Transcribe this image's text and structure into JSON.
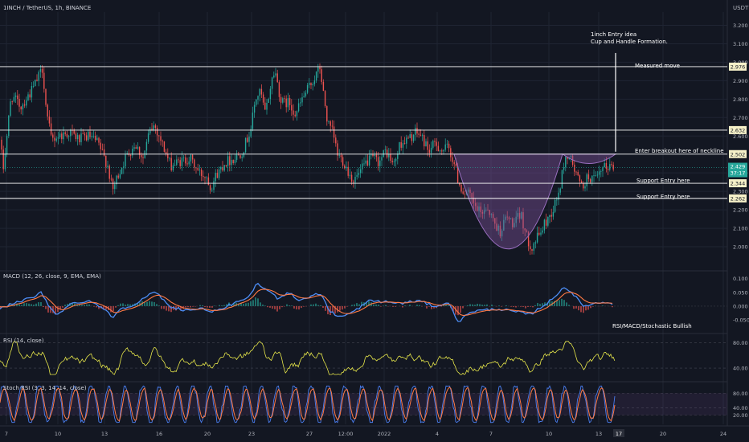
{
  "header": {
    "title": "1INCH / TetherUS, 1h, BINANCE",
    "currency": "USDT"
  },
  "colors": {
    "background": "#131722",
    "up": "#26a69a",
    "down": "#ef5350",
    "cup": "#7b4f96",
    "macd": "#4d8ef7",
    "signal": "#ff7a45",
    "rsi": "#e6e64a",
    "stoch_k": "#4a7ef0",
    "stoch_d": "#ff7a45",
    "level": "#ffffff",
    "grid": "#1f2433"
  },
  "annotations": {
    "idea": [
      "1inch Entry idea",
      "Cup and Handle Formation."
    ],
    "measured": "Measured move",
    "breakout": "Enter breakout here of neckline",
    "support1": "Support Entry here",
    "support2": "Support Entry here",
    "bullish": "RSI/MACD/Stochastic Bullish"
  },
  "chart_data": [
    {
      "type": "candlestick",
      "name": "price",
      "x_ticks": [
        "7",
        "10",
        "13",
        "16",
        "20",
        "23",
        "27",
        "12:00",
        "2022",
        "4",
        "7",
        "10",
        "13",
        "17",
        "20",
        "24"
      ],
      "y_ticks": [
        "3.200",
        "3.100",
        "3.000",
        "2.900",
        "2.800",
        "2.700",
        "2.600",
        "2.400",
        "2.300",
        "2.200",
        "2.100",
        "2.000"
      ],
      "ylim": [
        1.9,
        3.25
      ],
      "levels": [
        {
          "value": 2.976,
          "label": "2.976",
          "note": "Measured move"
        },
        {
          "value": 2.632,
          "label": "2.632"
        },
        {
          "value": 2.502,
          "label": "2.502",
          "note": "Enter breakout here of neckline"
        },
        {
          "value": 2.344,
          "label": "2.344",
          "note": "Support Entry here"
        },
        {
          "value": 2.262,
          "label": "2.262",
          "note": "Support Entry here"
        }
      ],
      "last_price": {
        "label": "2.429",
        "countdown": "37:17",
        "value": 2.429
      },
      "anchor_path": [
        [
          0,
          2.58
        ],
        [
          4,
          2.42
        ],
        [
          14,
          2.82
        ],
        [
          26,
          2.76
        ],
        [
          40,
          2.85
        ],
        [
          48,
          2.92
        ],
        [
          53,
          2.97
        ],
        [
          58,
          2.72
        ],
        [
          64,
          2.58
        ],
        [
          72,
          2.6
        ],
        [
          88,
          2.62
        ],
        [
          98,
          2.58
        ],
        [
          110,
          2.6
        ],
        [
          122,
          2.56
        ],
        [
          134,
          2.44
        ],
        [
          140,
          2.3
        ],
        [
          146,
          2.38
        ],
        [
          156,
          2.48
        ],
        [
          168,
          2.56
        ],
        [
          178,
          2.48
        ],
        [
          186,
          2.62
        ],
        [
          192,
          2.66
        ],
        [
          200,
          2.58
        ],
        [
          212,
          2.44
        ],
        [
          224,
          2.46
        ],
        [
          236,
          2.48
        ],
        [
          248,
          2.4
        ],
        [
          258,
          2.38
        ],
        [
          262,
          2.32
        ],
        [
          268,
          2.38
        ],
        [
          280,
          2.46
        ],
        [
          292,
          2.48
        ],
        [
          302,
          2.52
        ],
        [
          312,
          2.64
        ],
        [
          318,
          2.8
        ],
        [
          324,
          2.84
        ],
        [
          330,
          2.72
        ],
        [
          338,
          2.9
        ],
        [
          342,
          2.96
        ],
        [
          350,
          2.78
        ],
        [
          360,
          2.78
        ],
        [
          368,
          2.72
        ],
        [
          376,
          2.8
        ],
        [
          384,
          2.86
        ],
        [
          392,
          2.92
        ],
        [
          398,
          2.97
        ],
        [
          402,
          2.84
        ],
        [
          408,
          2.66
        ],
        [
          414,
          2.62
        ],
        [
          420,
          2.5
        ],
        [
          428,
          2.46
        ],
        [
          434,
          2.4
        ],
        [
          440,
          2.36
        ],
        [
          448,
          2.4
        ],
        [
          456,
          2.46
        ],
        [
          464,
          2.48
        ],
        [
          472,
          2.46
        ],
        [
          480,
          2.52
        ],
        [
          490,
          2.44
        ],
        [
          498,
          2.56
        ],
        [
          508,
          2.58
        ],
        [
          518,
          2.62
        ],
        [
          524,
          2.6
        ],
        [
          534,
          2.52
        ],
        [
          542,
          2.56
        ],
        [
          550,
          2.52
        ],
        [
          558,
          2.54
        ],
        [
          566,
          2.44
        ],
        [
          570,
          2.36
        ],
        [
          576,
          2.3
        ],
        [
          584,
          2.28
        ],
        [
          590,
          2.22
        ],
        [
          598,
          2.18
        ],
        [
          606,
          2.22
        ],
        [
          614,
          2.14
        ],
        [
          622,
          2.08
        ],
        [
          630,
          2.16
        ],
        [
          640,
          2.12
        ],
        [
          648,
          2.18
        ],
        [
          656,
          2.04
        ],
        [
          662,
          2.0
        ],
        [
          670,
          2.06
        ],
        [
          680,
          2.14
        ],
        [
          688,
          2.2
        ],
        [
          696,
          2.3
        ],
        [
          702,
          2.46
        ],
        [
          708,
          2.5
        ],
        [
          716,
          2.4
        ],
        [
          724,
          2.32
        ],
        [
          732,
          2.38
        ],
        [
          742,
          2.36
        ],
        [
          750,
          2.42
        ],
        [
          758,
          2.44
        ],
        [
          764,
          2.43
        ]
      ]
    },
    {
      "type": "line",
      "name": "macd",
      "title": "MACD (12, 26, close, 9, EMA, EMA)",
      "y_ticks": [
        "0.100",
        "0.050",
        "0.000",
        "-0.050"
      ],
      "ylim": [
        -0.085,
        0.105
      ],
      "anchor_path": [
        [
          0,
          -0.01
        ],
        [
          20,
          0.015
        ],
        [
          40,
          0.03
        ],
        [
          52,
          0.05
        ],
        [
          60,
          0.0
        ],
        [
          70,
          -0.03
        ],
        [
          90,
          0.01
        ],
        [
          110,
          0.02
        ],
        [
          125,
          0.0
        ],
        [
          140,
          -0.04
        ],
        [
          150,
          -0.01
        ],
        [
          170,
          0.01
        ],
        [
          185,
          0.04
        ],
        [
          195,
          0.05
        ],
        [
          210,
          0.0
        ],
        [
          230,
          -0.015
        ],
        [
          250,
          -0.01
        ],
        [
          270,
          -0.02
        ],
        [
          290,
          0.01
        ],
        [
          305,
          0.02
        ],
        [
          320,
          0.08
        ],
        [
          332,
          0.06
        ],
        [
          345,
          0.03
        ],
        [
          360,
          0.05
        ],
        [
          372,
          0.02
        ],
        [
          390,
          0.04
        ],
        [
          400,
          0.045
        ],
        [
          410,
          -0.02
        ],
        [
          425,
          -0.04
        ],
        [
          440,
          -0.02
        ],
        [
          460,
          0.02
        ],
        [
          480,
          0.015
        ],
        [
          500,
          0.01
        ],
        [
          520,
          0.02
        ],
        [
          540,
          0.0
        ],
        [
          560,
          0.01
        ],
        [
          570,
          -0.06
        ],
        [
          585,
          -0.02
        ],
        [
          600,
          -0.015
        ],
        [
          620,
          -0.01
        ],
        [
          640,
          -0.02
        ],
        [
          660,
          -0.03
        ],
        [
          675,
          0.0
        ],
        [
          690,
          0.03
        ],
        [
          700,
          0.07
        ],
        [
          712,
          0.05
        ],
        [
          725,
          0.0
        ],
        [
          740,
          0.01
        ],
        [
          755,
          0.015
        ],
        [
          764,
          0.01
        ]
      ]
    },
    {
      "type": "line",
      "name": "rsi",
      "title": "RSI (14, close)",
      "y_ticks": [
        "80.00",
        "40.00"
      ],
      "ylim": [
        25,
        88
      ]
    },
    {
      "type": "line",
      "name": "stoch_rsi",
      "title": "Stoch RSI (3, 3, 14, 14, close)",
      "y_ticks": [
        "80.00",
        "40.00",
        "20.00"
      ],
      "ylim": [
        -5,
        105
      ]
    }
  ]
}
